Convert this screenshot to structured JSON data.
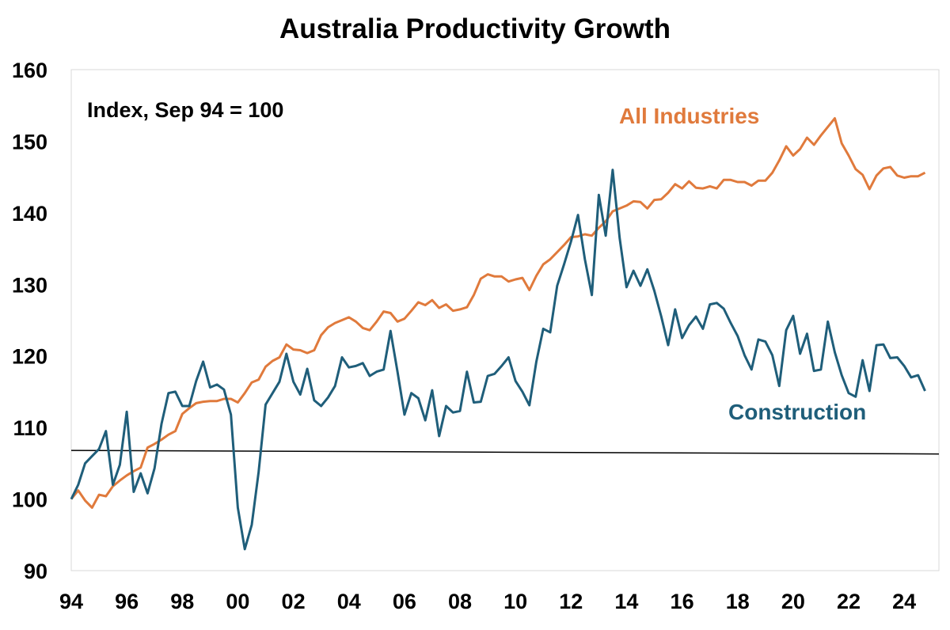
{
  "chart_data": {
    "type": "line",
    "title": "Australia Productivity Growth",
    "subtitle": "Index, Sep 94 = 100",
    "xlabel": "",
    "ylabel": "",
    "xlim": [
      1994.0,
      2025.25
    ],
    "ylim": [
      90,
      160
    ],
    "x_ticks": [
      {
        "value": 1994,
        "label": "94"
      },
      {
        "value": 1996,
        "label": "96"
      },
      {
        "value": 1998,
        "label": "98"
      },
      {
        "value": 2000,
        "label": "00"
      },
      {
        "value": 2002,
        "label": "02"
      },
      {
        "value": 2004,
        "label": "04"
      },
      {
        "value": 2006,
        "label": "06"
      },
      {
        "value": 2008,
        "label": "08"
      },
      {
        "value": 2010,
        "label": "10"
      },
      {
        "value": 2012,
        "label": "12"
      },
      {
        "value": 2014,
        "label": "14"
      },
      {
        "value": 2016,
        "label": "16"
      },
      {
        "value": 2018,
        "label": "18"
      },
      {
        "value": 2020,
        "label": "20"
      },
      {
        "value": 2022,
        "label": "22"
      },
      {
        "value": 2024,
        "label": "24"
      }
    ],
    "y_ticks": [
      90,
      100,
      110,
      120,
      130,
      140,
      150,
      160
    ],
    "grid": false,
    "legend": "direct labels on chart",
    "x_start": 1994.0,
    "x_step": 0.25,
    "series": [
      {
        "name": "All Industries",
        "color": "#E07A3C",
        "values": [
          100.0,
          101.2,
          99.8,
          98.8,
          100.6,
          100.4,
          101.8,
          102.6,
          103.3,
          103.9,
          104.4,
          107.2,
          107.7,
          108.3,
          109.0,
          109.5,
          111.9,
          112.7,
          113.4,
          113.6,
          113.7,
          113.7,
          114.0,
          114.0,
          113.5,
          114.8,
          116.3,
          116.7,
          118.5,
          119.3,
          119.8,
          121.6,
          120.9,
          120.8,
          120.4,
          120.8,
          122.9,
          124.0,
          124.6,
          125.0,
          125.4,
          124.8,
          123.9,
          123.6,
          124.8,
          126.2,
          126.0,
          124.8,
          125.2,
          126.3,
          127.5,
          127.1,
          127.8,
          126.7,
          127.2,
          126.3,
          126.5,
          126.8,
          128.5,
          130.8,
          131.4,
          131.1,
          131.1,
          130.4,
          130.7,
          130.9,
          129.2,
          131.2,
          132.8,
          133.5,
          134.5,
          135.5,
          136.6,
          136.7,
          137.0,
          136.8,
          137.9,
          138.8,
          140.2,
          140.6,
          141.0,
          141.6,
          141.5,
          140.6,
          141.8,
          141.9,
          142.8,
          144.0,
          143.4,
          144.4,
          143.5,
          143.4,
          143.7,
          143.4,
          144.6,
          144.6,
          144.3,
          144.3,
          143.8,
          144.5,
          144.5,
          145.6,
          147.3,
          149.3,
          148.0,
          148.9,
          150.5,
          149.5,
          150.8,
          152.0,
          153.2,
          149.7,
          148.0,
          146.1,
          145.3,
          143.3,
          145.2,
          146.2,
          146.4,
          145.2,
          144.9,
          145.1,
          145.1,
          145.6
        ]
      },
      {
        "name": "Construction",
        "color": "#1F5E7A",
        "values": [
          100.0,
          102.0,
          105.0,
          106.0,
          107.0,
          109.5,
          102.0,
          104.8,
          112.2,
          101.0,
          103.6,
          100.8,
          104.3,
          110.5,
          114.8,
          115.0,
          113.0,
          113.0,
          116.5,
          119.2,
          115.6,
          116.0,
          115.3,
          111.8,
          98.8,
          93.0,
          96.4,
          103.8,
          113.2,
          114.8,
          116.4,
          120.3,
          116.4,
          114.6,
          118.2,
          113.8,
          113.0,
          114.2,
          115.8,
          119.8,
          118.4,
          118.6,
          119.0,
          117.2,
          117.8,
          118.1,
          123.5,
          117.8,
          111.8,
          114.8,
          114.1,
          111.0,
          115.2,
          108.8,
          113.0,
          112.1,
          112.3,
          117.8,
          113.5,
          113.6,
          117.2,
          117.5,
          118.6,
          119.8,
          116.5,
          115.0,
          113.1,
          119.2,
          123.8,
          123.3,
          129.8,
          132.8,
          136.0,
          139.7,
          133.5,
          128.5,
          142.5,
          136.8,
          146.0,
          136.5,
          129.6,
          131.9,
          129.8,
          132.1,
          129.1,
          125.5,
          121.5,
          126.5,
          122.5,
          124.3,
          125.5,
          123.8,
          127.2,
          127.4,
          126.6,
          124.6,
          122.8,
          120.1,
          118.1,
          122.3,
          122.0,
          120.1,
          115.8,
          123.6,
          125.6,
          120.3,
          123.1,
          117.9,
          118.1,
          124.8,
          120.5,
          117.3,
          114.8,
          114.3,
          119.4,
          115.1,
          121.5,
          121.6,
          119.7,
          119.8,
          118.6,
          117.0,
          117.3,
          115.1
        ]
      }
    ],
    "reference_line": {
      "start": 106.8,
      "end": 106.3,
      "color": "#000000"
    }
  }
}
